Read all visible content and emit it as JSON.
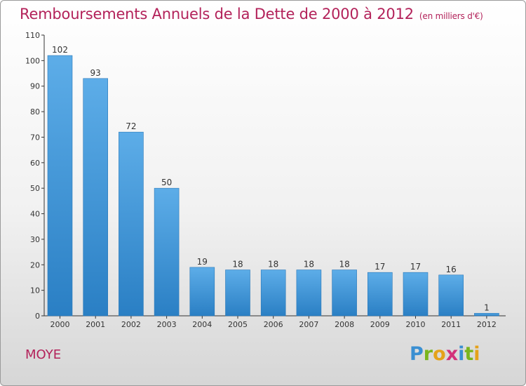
{
  "header": {
    "title": "Remboursements Annuels de la Dette de 2000 à 2012",
    "subtitle": "(en milliers d'€)"
  },
  "footer": {
    "commune": "MOYE",
    "logo_text": "Proxiti"
  },
  "colors": {
    "accent": "#b3225a",
    "bar_top": "#5dade8",
    "bar_bottom": "#2a7fc4"
  },
  "chart_data": {
    "type": "bar",
    "title": "Remboursements Annuels de la Dette de 2000 à 2012",
    "subtitle": "(en milliers d'€)",
    "categories": [
      "2000",
      "2001",
      "2002",
      "2003",
      "2004",
      "2005",
      "2006",
      "2007",
      "2008",
      "2009",
      "2010",
      "2011",
      "2012"
    ],
    "values": [
      102,
      93,
      72,
      50,
      19,
      18,
      18,
      18,
      18,
      17,
      17,
      16,
      1
    ],
    "ylim": [
      0,
      110
    ],
    "yticks": [
      0,
      10,
      20,
      30,
      40,
      50,
      60,
      70,
      80,
      90,
      100,
      110
    ],
    "grid": false,
    "data_labels": true
  }
}
